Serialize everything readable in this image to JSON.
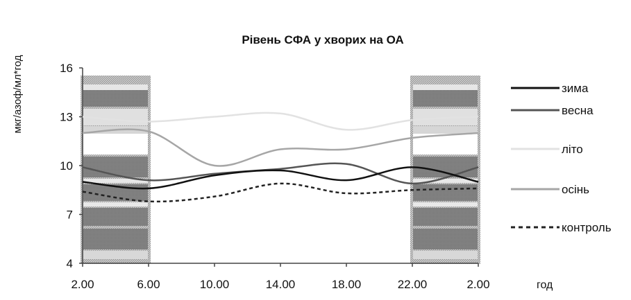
{
  "chart_data": {
    "type": "line",
    "title": "Рівень СФА у хворих на ОА",
    "ylabel": "мкг/азоф/мл*год",
    "xlabel": "год",
    "x": [
      "2.00",
      "6.00",
      "10.00",
      "14.00",
      "18.00",
      "22.00",
      "2.00"
    ],
    "ylim": [
      4,
      16
    ],
    "yticks": [
      4,
      7,
      10,
      13,
      16
    ],
    "grid": false,
    "legend_position": "right",
    "shaded_regions": [
      {
        "from": "2.00",
        "to": "6.00"
      },
      {
        "from": "22.00",
        "to": "2.00"
      }
    ],
    "series": [
      {
        "name": "зима",
        "values": [
          9.0,
          8.6,
          9.4,
          9.7,
          9.1,
          9.9,
          9.0
        ],
        "color": "#111111",
        "dash": "solid"
      },
      {
        "name": "весна",
        "values": [
          9.9,
          9.1,
          9.5,
          9.8,
          10.1,
          8.9,
          9.9
        ],
        "color": "#555555",
        "dash": "solid"
      },
      {
        "name": "літо",
        "values": [
          13.0,
          12.7,
          13.0,
          13.2,
          12.2,
          12.8,
          13.0
        ],
        "color": "#e2e2e2",
        "dash": "solid"
      },
      {
        "name": "осінь",
        "values": [
          12.0,
          12.1,
          10.0,
          11.0,
          11.0,
          11.7,
          12.0
        ],
        "color": "#a6a6a6",
        "dash": "solid"
      },
      {
        "name": "контроль",
        "values": [
          8.4,
          7.8,
          8.1,
          8.9,
          8.3,
          8.5,
          8.6
        ],
        "color": "#222222",
        "dash": "dashed"
      }
    ]
  }
}
